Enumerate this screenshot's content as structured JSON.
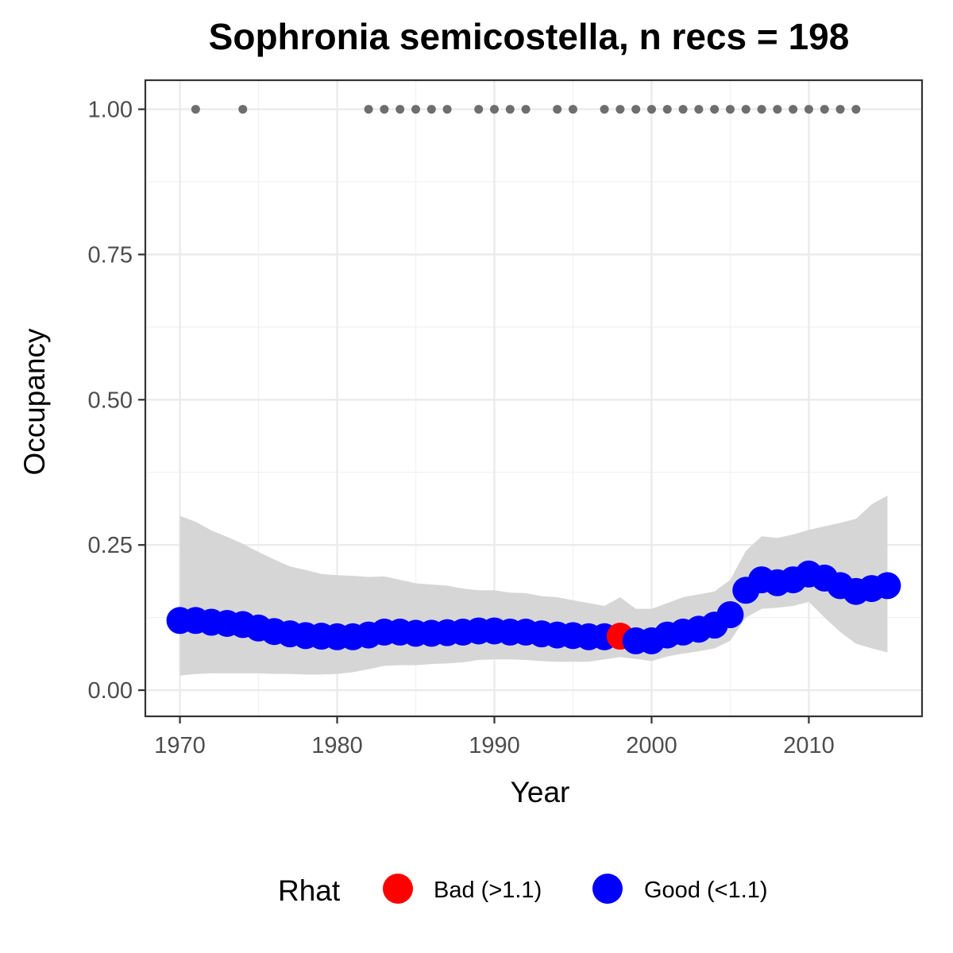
{
  "chart_data": {
    "type": "line",
    "title": "Sophronia semicostella, n recs = 198",
    "xlabel": "Year",
    "ylabel": "Occupancy",
    "xlim": [
      1967.8,
      2017.2
    ],
    "ylim": [
      -0.045,
      1.05
    ],
    "x_ticks": [
      1970,
      1980,
      1990,
      2000,
      2010
    ],
    "x_tick_labels": [
      "1970",
      "1980",
      "1990",
      "2000",
      "2010"
    ],
    "y_ticks": [
      0,
      0.25,
      0.5,
      0.75,
      1
    ],
    "y_tick_labels": [
      "0.00",
      "0.25",
      "0.50",
      "0.75",
      "1.00"
    ],
    "grid": true,
    "legend": {
      "position": "bottom",
      "title": "Rhat",
      "entries": [
        {
          "label": "Bad (>1.1)",
          "color": "#ff0000"
        },
        {
          "label": "Good (<1.1)",
          "color": "#0000ff"
        }
      ]
    },
    "colors": {
      "good": "#0000ff",
      "bad": "#ff0000",
      "ribbon": "#d6d6d6",
      "records": "#6e6e6e"
    },
    "years": [
      1970,
      1971,
      1972,
      1973,
      1974,
      1975,
      1976,
      1977,
      1978,
      1979,
      1980,
      1981,
      1982,
      1983,
      1984,
      1985,
      1986,
      1987,
      1988,
      1989,
      1990,
      1991,
      1992,
      1993,
      1994,
      1995,
      1996,
      1997,
      1998,
      1999,
      2000,
      2001,
      2002,
      2003,
      2004,
      2005,
      2006,
      2007,
      2008,
      2009,
      2010,
      2011,
      2012,
      2013,
      2014,
      2015
    ],
    "occupancy": [
      0.12,
      0.12,
      0.117,
      0.115,
      0.113,
      0.107,
      0.101,
      0.097,
      0.094,
      0.093,
      0.092,
      0.092,
      0.095,
      0.1,
      0.1,
      0.098,
      0.098,
      0.099,
      0.1,
      0.102,
      0.102,
      0.1,
      0.1,
      0.097,
      0.095,
      0.094,
      0.092,
      0.092,
      0.093,
      0.085,
      0.085,
      0.095,
      0.1,
      0.105,
      0.112,
      0.13,
      0.172,
      0.19,
      0.185,
      0.19,
      0.2,
      0.193,
      0.18,
      0.17,
      0.175,
      0.18
    ],
    "lower": [
      0.025,
      0.028,
      0.029,
      0.029,
      0.029,
      0.029,
      0.028,
      0.028,
      0.027,
      0.027,
      0.028,
      0.031,
      0.036,
      0.042,
      0.043,
      0.043,
      0.045,
      0.046,
      0.048,
      0.052,
      0.053,
      0.053,
      0.052,
      0.05,
      0.049,
      0.049,
      0.049,
      0.053,
      0.057,
      0.054,
      0.05,
      0.058,
      0.063,
      0.067,
      0.072,
      0.085,
      0.125,
      0.14,
      0.142,
      0.145,
      0.152,
      0.125,
      0.1,
      0.08,
      0.072,
      0.065
    ],
    "upper": [
      0.3,
      0.29,
      0.275,
      0.264,
      0.252,
      0.238,
      0.225,
      0.213,
      0.207,
      0.2,
      0.198,
      0.197,
      0.195,
      0.196,
      0.19,
      0.184,
      0.182,
      0.18,
      0.175,
      0.172,
      0.172,
      0.168,
      0.167,
      0.162,
      0.16,
      0.155,
      0.15,
      0.145,
      0.16,
      0.14,
      0.14,
      0.15,
      0.16,
      0.165,
      0.17,
      0.19,
      0.24,
      0.265,
      0.262,
      0.268,
      0.276,
      0.282,
      0.288,
      0.295,
      0.32,
      0.335
    ],
    "rhat_status": [
      "good",
      "good",
      "good",
      "good",
      "good",
      "good",
      "good",
      "good",
      "good",
      "good",
      "good",
      "good",
      "good",
      "good",
      "good",
      "good",
      "good",
      "good",
      "good",
      "good",
      "good",
      "good",
      "good",
      "good",
      "good",
      "good",
      "good",
      "good",
      "bad",
      "good",
      "good",
      "good",
      "good",
      "good",
      "good",
      "good",
      "good",
      "good",
      "good",
      "good",
      "good",
      "good",
      "good",
      "good",
      "good",
      "good"
    ],
    "record_years": [
      1971,
      1974,
      1982,
      1983,
      1984,
      1985,
      1986,
      1987,
      1989,
      1990,
      1991,
      1992,
      1994,
      1995,
      1997,
      1998,
      1999,
      2000,
      2001,
      2002,
      2003,
      2004,
      2005,
      2006,
      2007,
      2008,
      2009,
      2010,
      2011,
      2012,
      2013
    ],
    "record_value": 1
  }
}
